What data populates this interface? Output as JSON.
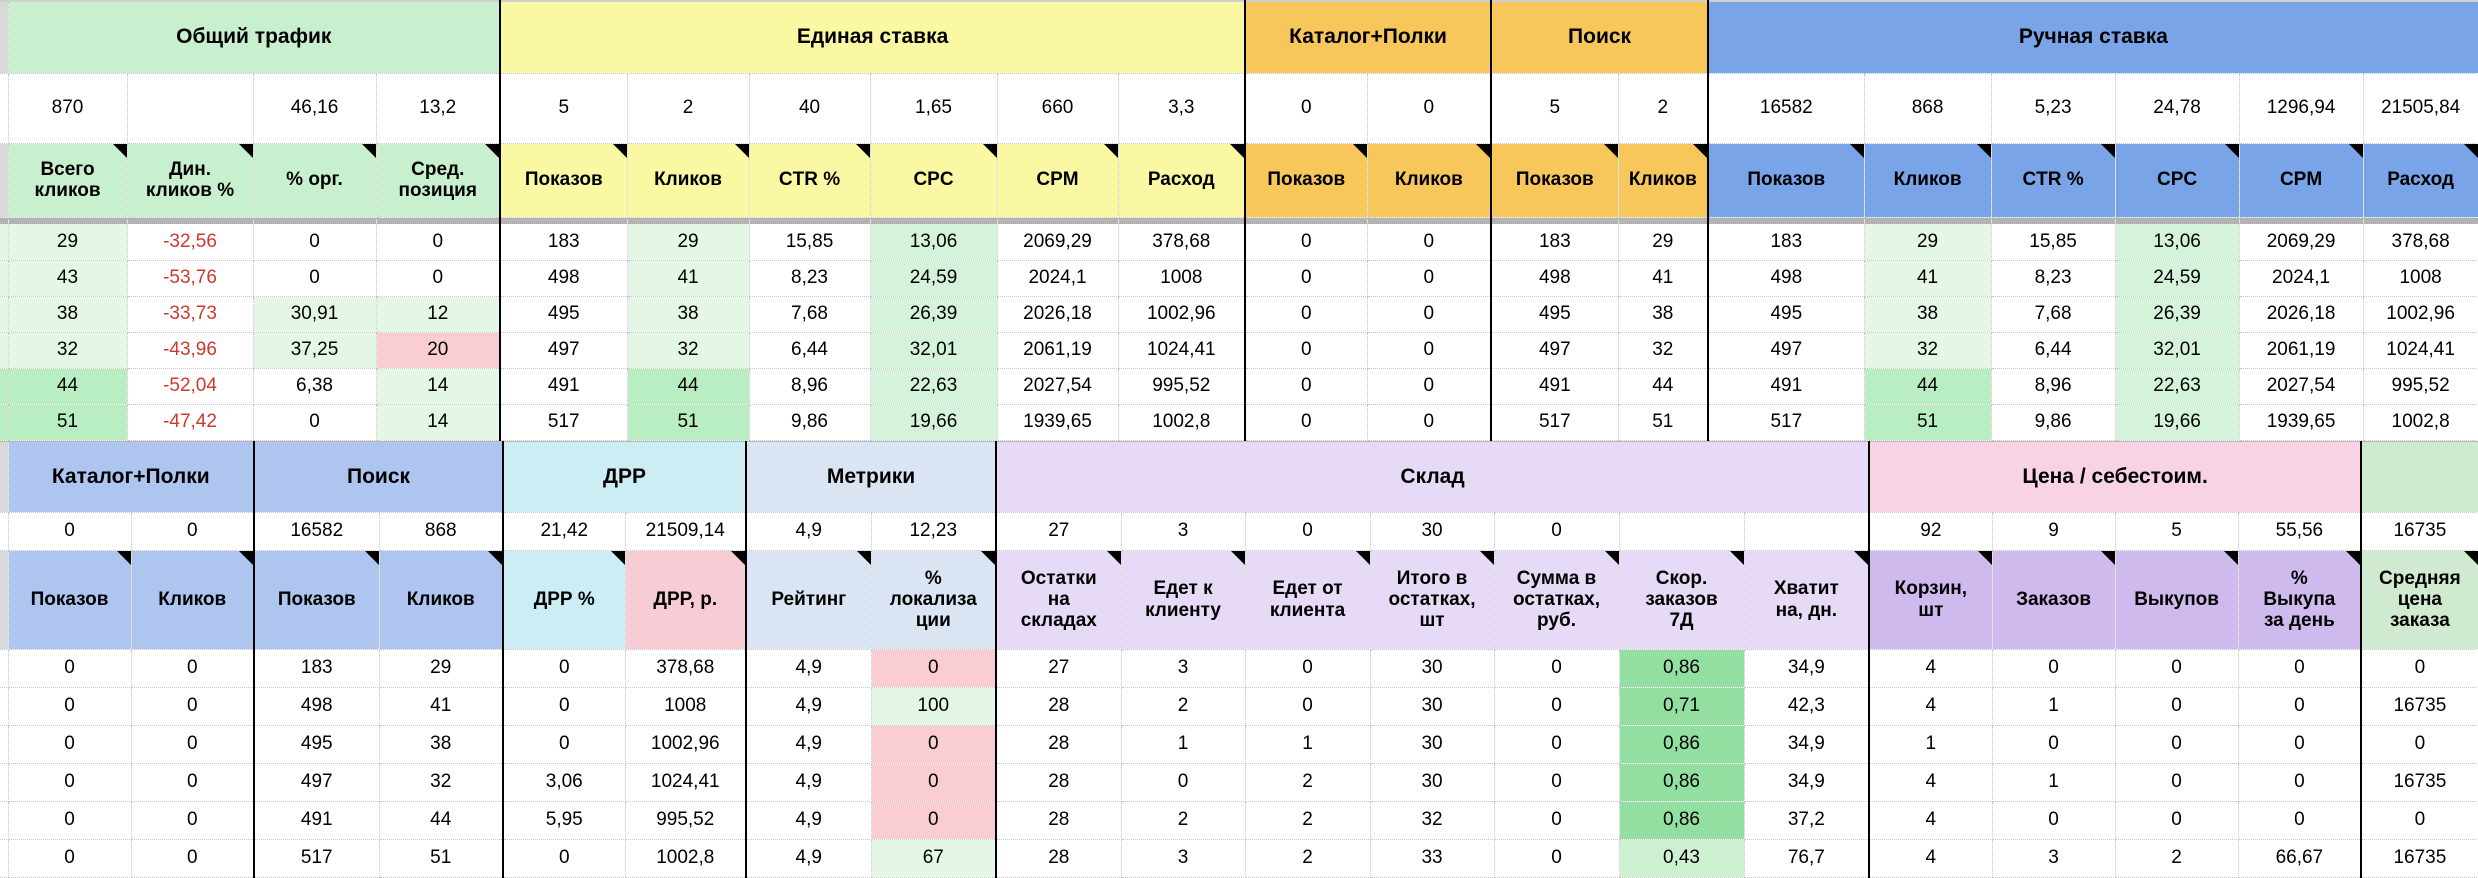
{
  "colors": {
    "group_green": "#c8f0ce",
    "group_yellow": "#fbf8a3",
    "group_orange": "#f7c75c",
    "group_blue": "#79a4e7",
    "group_periwinkle": "#adc5ef",
    "group_cyan": "#cdedf4",
    "group_metrics": "#dbe4f3",
    "group_lavender": "#e7daf6",
    "group_pink": "#f8d3e3",
    "header_drr_rub_pink": "#f8ccd4",
    "header_purple": "#cfbaee",
    "header_green": "#cfeacf",
    "cell_green_light": "#e4f6e6",
    "cell_green_mint": "#d5f2da",
    "cell_green_medium": "#b9edc2",
    "cell_green_strong": "#93dfa2",
    "cell_green_soft": "#cdf1d1",
    "cell_pink": "#f9cdd1",
    "negative_text": "#cc392e"
  },
  "section1": {
    "groups": [
      {
        "label": "Общий трафик",
        "span": 4,
        "bg": "green"
      },
      {
        "label": "Единая ставка",
        "span": 6,
        "bg": "yellow"
      },
      {
        "label": "Каталог+Полки",
        "span": 2,
        "bg": "orange"
      },
      {
        "label": "Поиск",
        "span": 2,
        "bg": "orange"
      },
      {
        "label": "Ручная ставка",
        "span": 6,
        "bg": "blue"
      }
    ],
    "summary": [
      "870",
      "",
      "46,16",
      "13,2",
      "5",
      "2",
      "40",
      "1,65",
      "660",
      "3,3",
      "0",
      "0",
      "5",
      "2",
      "16582",
      "868",
      "5,23",
      "24,78",
      "1296,94",
      "21505,84"
    ],
    "columns": [
      "Всего\nкликов",
      "Дин.\nкликов %",
      "% орг.",
      "Сред.\nпозиция",
      "Показов",
      "Кликов",
      "CTR %",
      "CPC",
      "CPM",
      "Расход",
      "Показов",
      "Кликов",
      "Показов",
      "Кликов",
      "Показов",
      "Кликов",
      "CTR %",
      "CPC",
      "CPM",
      "Расход"
    ],
    "column_bg": [
      "green",
      "green",
      "green",
      "green",
      "yellow",
      "yellow",
      "yellow",
      "yellow",
      "yellow",
      "yellow",
      "orange",
      "orange",
      "orange",
      "orange",
      "blue",
      "blue",
      "blue",
      "blue",
      "blue",
      "blue"
    ],
    "rows": [
      [
        "29",
        "-32,56",
        "0",
        "0",
        "183",
        "29",
        "15,85",
        "13,06",
        "2069,29",
        "378,68",
        "0",
        "0",
        "183",
        "29",
        "183",
        "29",
        "15,85",
        "13,06",
        "2069,29",
        "378,68"
      ],
      [
        "43",
        "-53,76",
        "0",
        "0",
        "498",
        "41",
        "8,23",
        "24,59",
        "2024,1",
        "1008",
        "0",
        "0",
        "498",
        "41",
        "498",
        "41",
        "8,23",
        "24,59",
        "2024,1",
        "1008"
      ],
      [
        "38",
        "-33,73",
        "30,91",
        "12",
        "495",
        "38",
        "7,68",
        "26,39",
        "2026,18",
        "1002,96",
        "0",
        "0",
        "495",
        "38",
        "495",
        "38",
        "7,68",
        "26,39",
        "2026,18",
        "1002,96"
      ],
      [
        "32",
        "-43,96",
        "37,25",
        "20",
        "497",
        "32",
        "6,44",
        "32,01",
        "2061,19",
        "1024,41",
        "0",
        "0",
        "497",
        "32",
        "497",
        "32",
        "6,44",
        "32,01",
        "2061,19",
        "1024,41"
      ],
      [
        "44",
        "-52,04",
        "6,38",
        "14",
        "491",
        "44",
        "8,96",
        "22,63",
        "2027,54",
        "995,52",
        "0",
        "0",
        "491",
        "44",
        "491",
        "44",
        "8,96",
        "22,63",
        "2027,54",
        "995,52"
      ],
      [
        "51",
        "-47,42",
        "0",
        "14",
        "517",
        "51",
        "9,86",
        "19,66",
        "1939,65",
        "1002,8",
        "0",
        "0",
        "517",
        "51",
        "517",
        "51",
        "9,86",
        "19,66",
        "1939,65",
        "1002,8"
      ]
    ],
    "cell_styles": [
      [
        "g1",
        "red",
        "",
        "",
        "",
        "g1",
        "",
        "g2",
        "",
        "",
        "",
        "",
        "",
        "",
        "",
        "g1",
        "",
        "g2",
        "",
        ""
      ],
      [
        "g1",
        "red",
        "",
        "",
        "",
        "g1",
        "",
        "g2",
        "",
        "",
        "",
        "",
        "",
        "",
        "",
        "g1",
        "",
        "g2",
        "",
        ""
      ],
      [
        "g1",
        "red",
        "g1",
        "g1",
        "",
        "g1",
        "",
        "g2",
        "",
        "",
        "",
        "",
        "",
        "",
        "",
        "g1",
        "",
        "g2",
        "",
        ""
      ],
      [
        "g1",
        "red",
        "g1",
        "pink",
        "",
        "g1",
        "",
        "g2",
        "",
        "",
        "",
        "",
        "",
        "",
        "",
        "g1",
        "",
        "g2",
        "",
        ""
      ],
      [
        "g3",
        "red",
        "",
        "g1",
        "",
        "g3",
        "",
        "g2",
        "",
        "",
        "",
        "",
        "",
        "",
        "",
        "g3",
        "",
        "g2",
        "",
        ""
      ],
      [
        "g3",
        "red",
        "",
        "g1",
        "",
        "g3",
        "",
        "g2",
        "",
        "",
        "",
        "",
        "",
        "",
        "",
        "g3",
        "",
        "g2",
        "",
        ""
      ]
    ]
  },
  "section2": {
    "groups": [
      {
        "label": "Каталог+Полки",
        "span": 2,
        "bg": "peri"
      },
      {
        "label": "Поиск",
        "span": 2,
        "bg": "peri"
      },
      {
        "label": "ДРР",
        "span": 2,
        "bg": "cyan"
      },
      {
        "label": "Метрики",
        "span": 2,
        "bg": "metr"
      },
      {
        "label": "Склад",
        "span": 7,
        "bg": "lav"
      },
      {
        "label": "Цена / себестоим.",
        "span": 4,
        "bg": "pinkg"
      },
      {
        "label": "",
        "span": 1,
        "bg": "greenc"
      }
    ],
    "summary": [
      "0",
      "0",
      "16582",
      "868",
      "21,42",
      "21509,14",
      "4,9",
      "12,23",
      "27",
      "3",
      "0",
      "30",
      "0",
      "",
      "",
      "92",
      "9",
      "5",
      "55,56",
      "16735"
    ],
    "columns": [
      "Показов",
      "Кликов",
      "Показов",
      "Кликов",
      "ДРР %",
      "ДРР, р.",
      "Рейтинг",
      "%\nлокализа\nции",
      "Остатки\nна\nскладах",
      "Едет к\nклиенту",
      "Едет от\nклиента",
      "Итого в\nостатках,\nшт",
      "Сумма в\nостатках,\nруб.",
      "Скор.\nзаказов\n7Д",
      "Хватит\nна, дн.",
      "Корзин,\nшт",
      "Заказов",
      "Выкупов",
      "%\nВыкупа\nза день",
      "Средняя\nцена\nзаказа"
    ],
    "column_bg": [
      "peri",
      "peri",
      "peri",
      "peri",
      "cyan",
      "pinkh",
      "metr",
      "metr",
      "lav",
      "lav",
      "lav",
      "lav",
      "lav",
      "lav",
      "lav",
      "purp",
      "purp",
      "purp",
      "purp",
      "greenc"
    ],
    "rows": [
      [
        "0",
        "0",
        "183",
        "29",
        "0",
        "378,68",
        "4,9",
        "0",
        "27",
        "3",
        "0",
        "30",
        "0",
        "0,86",
        "34,9",
        "4",
        "0",
        "0",
        "0",
        "0"
      ],
      [
        "0",
        "0",
        "498",
        "41",
        "0",
        "1008",
        "4,9",
        "100",
        "28",
        "2",
        "0",
        "30",
        "0",
        "0,71",
        "42,3",
        "4",
        "1",
        "0",
        "0",
        "16735"
      ],
      [
        "0",
        "0",
        "495",
        "38",
        "0",
        "1002,96",
        "4,9",
        "0",
        "28",
        "1",
        "1",
        "30",
        "0",
        "0,86",
        "34,9",
        "1",
        "0",
        "0",
        "0",
        "0"
      ],
      [
        "0",
        "0",
        "497",
        "32",
        "3,06",
        "1024,41",
        "4,9",
        "0",
        "28",
        "0",
        "2",
        "30",
        "0",
        "0,86",
        "34,9",
        "4",
        "1",
        "0",
        "0",
        "16735"
      ],
      [
        "0",
        "0",
        "491",
        "44",
        "5,95",
        "995,52",
        "4,9",
        "0",
        "28",
        "2",
        "2",
        "32",
        "0",
        "0,86",
        "37,2",
        "4",
        "0",
        "0",
        "0",
        "0"
      ],
      [
        "0",
        "0",
        "517",
        "51",
        "0",
        "1002,8",
        "4,9",
        "67",
        "28",
        "3",
        "2",
        "33",
        "0",
        "0,43",
        "76,7",
        "4",
        "3",
        "2",
        "66,67",
        "16735"
      ]
    ],
    "cell_styles": [
      [
        "",
        "",
        "",
        "",
        "",
        "",
        "",
        "pink",
        "",
        "",
        "",
        "",
        "",
        "g4",
        "",
        "",
        "",
        "",
        "",
        ""
      ],
      [
        "",
        "",
        "",
        "",
        "",
        "",
        "",
        "g1",
        "",
        "",
        "",
        "",
        "",
        "g4",
        "",
        "",
        "",
        "",
        "",
        ""
      ],
      [
        "",
        "",
        "",
        "",
        "",
        "",
        "",
        "pink",
        "",
        "",
        "",
        "",
        "",
        "g4",
        "",
        "",
        "",
        "",
        "",
        ""
      ],
      [
        "",
        "",
        "",
        "",
        "",
        "",
        "",
        "pink",
        "",
        "",
        "",
        "",
        "",
        "g4",
        "",
        "",
        "",
        "",
        "",
        ""
      ],
      [
        "",
        "",
        "",
        "",
        "",
        "",
        "",
        "pink",
        "",
        "",
        "",
        "",
        "",
        "g4",
        "",
        "",
        "",
        "",
        "",
        ""
      ],
      [
        "",
        "",
        "",
        "",
        "",
        "",
        "",
        "g1",
        "",
        "",
        "",
        "",
        "",
        "g5",
        "",
        "",
        "",
        "",
        "",
        ""
      ]
    ]
  }
}
